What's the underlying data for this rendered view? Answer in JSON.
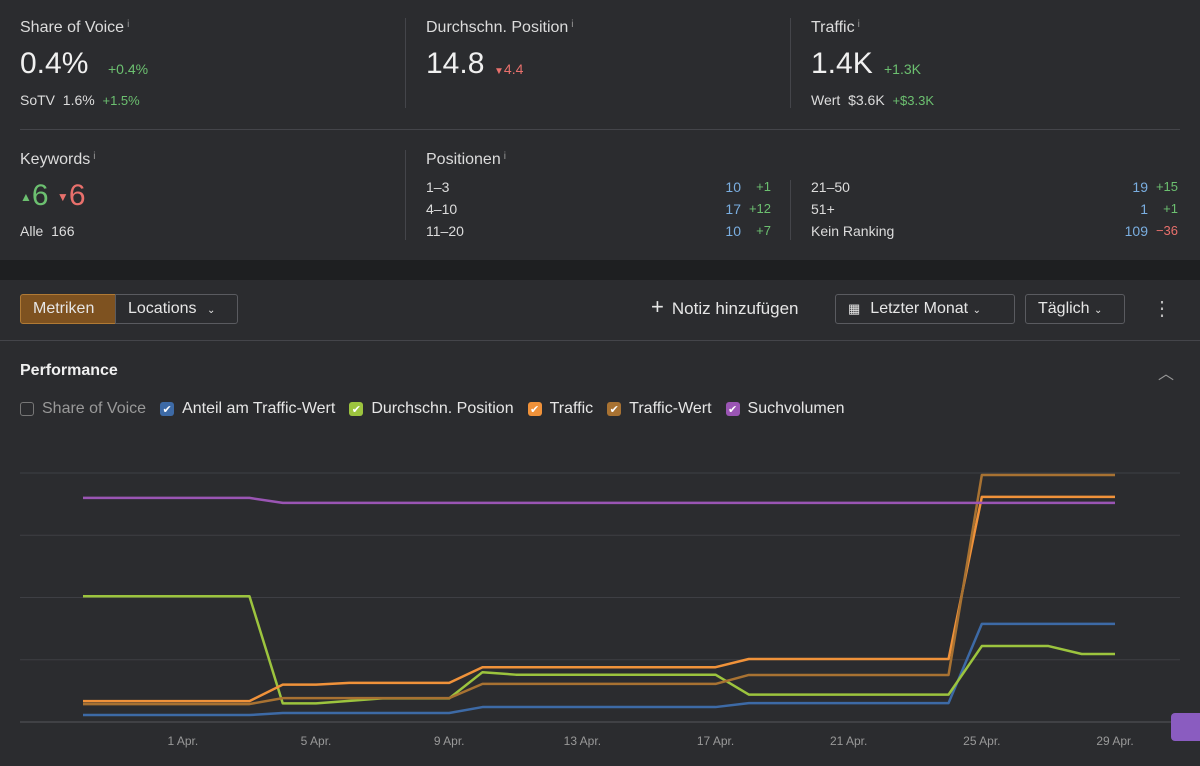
{
  "metrics": {
    "share_of_voice": {
      "label": "Share of Voice",
      "info": "i",
      "value": "0.4%",
      "change": "+0.4%",
      "sub_label": "SoTV",
      "sub_value": "1.6%",
      "sub_change": "+1.5%"
    },
    "position": {
      "label": "Durchschn. Position",
      "info": "i",
      "value": "14.8",
      "change": "4.4"
    },
    "traffic": {
      "label": "Traffic",
      "info": "i",
      "value": "1.4K",
      "change": "+1.3K",
      "sub_label": "Wert",
      "sub_value": "$3.6K",
      "sub_change": "+$3.3K"
    },
    "keywords": {
      "label": "Keywords",
      "info": "i",
      "up": "6",
      "down": "6",
      "sub_label": "Alle",
      "sub_value": "166"
    },
    "positions": {
      "label": "Positionen",
      "info": "i",
      "rows": [
        {
          "range": "1–3",
          "count": "10",
          "change": "+1"
        },
        {
          "range": "4–10",
          "count": "17",
          "change": "+12"
        },
        {
          "range": "11–20",
          "count": "10",
          "change": "+7"
        },
        {
          "range": "21–50",
          "count": "19",
          "change": "+15"
        },
        {
          "range": "51+",
          "count": "1",
          "change": "+1"
        },
        {
          "range": "Kein Ranking",
          "count": "109",
          "change": "−36"
        }
      ]
    }
  },
  "toolbar": {
    "tabs": [
      "Metriken",
      "Locations"
    ],
    "add_note": "Notiz hinzufügen",
    "period": "Letzter Monat",
    "interval": "Täglich"
  },
  "chart_data": {
    "type": "line",
    "title": "Performance",
    "categories": [
      null,
      null,
      null,
      "1 Apr.",
      null,
      null,
      null,
      "5 Apr.",
      null,
      null,
      null,
      "9 Apr.",
      null,
      null,
      null,
      "13 Apr.",
      null,
      null,
      null,
      "17 Apr.",
      null,
      null,
      null,
      "21 Apr.",
      null,
      null,
      null,
      "25 Apr.",
      null,
      null,
      null,
      "29 Apr."
    ],
    "ylim": [
      0,
      100
    ],
    "yticks": [
      0,
      25,
      50,
      75,
      100
    ],
    "grid": true,
    "series": [
      {
        "name": "Share of Voice",
        "checked": false
      },
      {
        "name": "Anteil am Traffic-Wert",
        "color": "#3d6aa6",
        "checked": true,
        "values": [
          2.8,
          2.8,
          2.8,
          2.8,
          2.8,
          2.8,
          3.6,
          3.6,
          3.6,
          3.6,
          3.6,
          3.6,
          6,
          6,
          6,
          6,
          6,
          6,
          6,
          6,
          7.6,
          7.6,
          7.6,
          7.6,
          7.6,
          7.6,
          7.6,
          39.4,
          39.4,
          39.4,
          39.4,
          39.4
        ]
      },
      {
        "name": "Durchschn. Position",
        "color": "#9cc43e",
        "checked": true,
        "values": [
          50.5,
          50.5,
          50.5,
          50.5,
          50.5,
          50.5,
          7.5,
          7.5,
          8.5,
          9.5,
          9.5,
          9.5,
          20,
          19,
          19,
          19,
          19,
          19,
          19,
          19,
          11,
          11,
          11,
          11,
          11,
          11,
          11,
          30.5,
          30.5,
          30.5,
          27.3,
          27.3
        ]
      },
      {
        "name": "Traffic",
        "color": "#f0923a",
        "checked": true,
        "values": [
          8.4,
          8.4,
          8.4,
          8.4,
          8.4,
          8.4,
          15,
          15,
          15.7,
          15.7,
          15.7,
          15.7,
          22,
          22,
          22,
          22,
          22,
          22,
          22,
          22,
          25.3,
          25.3,
          25.3,
          25.3,
          25.3,
          25.3,
          25.3,
          90.4,
          90.4,
          90.4,
          90.4,
          90.4
        ]
      },
      {
        "name": "Traffic-Wert",
        "color": "#a87232",
        "checked": true,
        "values": [
          7.2,
          7.2,
          7.2,
          7.2,
          7.2,
          7.2,
          9.6,
          9.6,
          9.6,
          9.6,
          9.6,
          9.6,
          15.3,
          15.3,
          15.3,
          15.3,
          15.3,
          15.3,
          15.3,
          15.3,
          18.9,
          18.9,
          18.9,
          18.9,
          18.9,
          18.9,
          18.9,
          99.2,
          99.2,
          99.2,
          99.2,
          99.2
        ]
      },
      {
        "name": "Suchvolumen",
        "color": "#9a55b4",
        "checked": true,
        "values": [
          90,
          90,
          90,
          90,
          90,
          90,
          88,
          88,
          88,
          88,
          88,
          88,
          88,
          88,
          88,
          88,
          88,
          88,
          88,
          88,
          88,
          88,
          88,
          88,
          88,
          88,
          88,
          88,
          88,
          88,
          88,
          88
        ]
      }
    ]
  }
}
